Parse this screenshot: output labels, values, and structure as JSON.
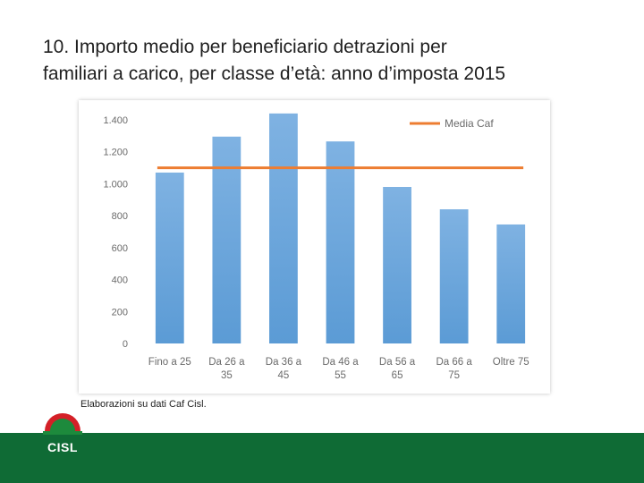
{
  "page": {
    "title_line1": "10. Importo medio per beneficiario detrazioni per",
    "title_line2": "familiari a carico, per classe d’età: anno d’imposta 2015",
    "note": "Elaborazioni su dati Caf Cisl.",
    "logo_text": "CISL"
  },
  "colors": {
    "bar": "#5b9bd5",
    "bar_light": "#7fb2e2",
    "average_line": "#ed7d31",
    "footer": "#0f6b35",
    "logo_red": "#d42027",
    "logo_green": "#1d8a3c"
  },
  "chart_data": {
    "type": "bar",
    "title": "",
    "xlabel": "",
    "ylabel": "",
    "categories": [
      [
        "Fino a 25"
      ],
      [
        "Da 26 a",
        "35"
      ],
      [
        "Da 36 a",
        "45"
      ],
      [
        "Da 46 a",
        "55"
      ],
      [
        "Da 56 a",
        "65"
      ],
      [
        "Da 66 a",
        "75"
      ],
      [
        "Oltre 75"
      ]
    ],
    "values": [
      1070,
      1295,
      1440,
      1265,
      980,
      840,
      745
    ],
    "average": {
      "name": "Media Caf",
      "value": 1100
    },
    "ylim": [
      0,
      1400
    ],
    "yticks": [
      0,
      200,
      400,
      600,
      800,
      1000,
      1200,
      1400
    ],
    "ytick_labels": [
      "0",
      "200",
      "400",
      "600",
      "800",
      "1.000",
      "1.200",
      "1.400"
    ],
    "legend": "top-right",
    "grid": false
  }
}
